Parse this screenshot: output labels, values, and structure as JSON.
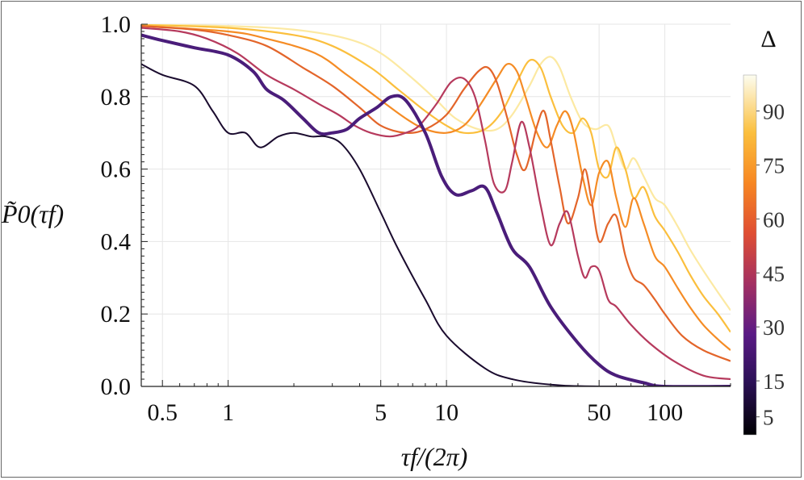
{
  "chart_data": {
    "type": "line",
    "xlabel": "τf/(2π)",
    "ylabel": "P̃0(τf)",
    "x_scale": "log",
    "xlim": [
      0.4,
      200
    ],
    "ylim": [
      0,
      1
    ],
    "x_ticks": [
      0.5,
      1,
      5,
      10,
      50,
      100
    ],
    "x_tick_labels": [
      "0.5",
      "1",
      "5",
      "10",
      "50",
      "100"
    ],
    "y_ticks": [
      0,
      0.2,
      0.4,
      0.6,
      0.8,
      1.0
    ],
    "y_tick_labels": [
      "0.0",
      "0.2",
      "0.4",
      "0.6",
      "0.8",
      "1.0"
    ],
    "grid": true,
    "colorbar": {
      "title": "Δ",
      "range": [
        0,
        100
      ],
      "tick_values": [
        5,
        15,
        30,
        45,
        60,
        75,
        90
      ],
      "tick_labels": [
        "5",
        "15",
        "30",
        "45",
        "60",
        "75",
        "90"
      ]
    },
    "series": [
      {
        "delta": 5,
        "color": "#1a0b2e",
        "width": 2.0,
        "points": [
          [
            0.4,
            0.89
          ],
          [
            0.5,
            0.86
          ],
          [
            0.7,
            0.83
          ],
          [
            0.85,
            0.76
          ],
          [
            1.0,
            0.7
          ],
          [
            1.2,
            0.7
          ],
          [
            1.4,
            0.66
          ],
          [
            1.7,
            0.69
          ],
          [
            2.0,
            0.7
          ],
          [
            2.4,
            0.69
          ],
          [
            2.8,
            0.69
          ],
          [
            3.3,
            0.67
          ],
          [
            4.0,
            0.6
          ],
          [
            5.0,
            0.48
          ],
          [
            6.0,
            0.38
          ],
          [
            8.0,
            0.24
          ],
          [
            10,
            0.14
          ],
          [
            15,
            0.05
          ],
          [
            20,
            0.02
          ],
          [
            30,
            0.005
          ],
          [
            50,
            0.0
          ],
          [
            200,
            0.0
          ]
        ]
      },
      {
        "delta": 15,
        "color": "#4a1d7a",
        "width": 4.0,
        "points": [
          [
            0.4,
            0.97
          ],
          [
            0.5,
            0.955
          ],
          [
            0.7,
            0.935
          ],
          [
            1.0,
            0.915
          ],
          [
            1.3,
            0.87
          ],
          [
            1.5,
            0.82
          ],
          [
            1.8,
            0.79
          ],
          [
            2.2,
            0.74
          ],
          [
            2.6,
            0.7
          ],
          [
            3.0,
            0.7
          ],
          [
            3.5,
            0.71
          ],
          [
            4.0,
            0.74
          ],
          [
            4.8,
            0.77
          ],
          [
            5.6,
            0.8
          ],
          [
            6.5,
            0.79
          ],
          [
            8.0,
            0.7
          ],
          [
            9.5,
            0.58
          ],
          [
            11,
            0.53
          ],
          [
            13,
            0.54
          ],
          [
            15,
            0.55
          ],
          [
            17,
            0.48
          ],
          [
            20,
            0.38
          ],
          [
            24,
            0.33
          ],
          [
            30,
            0.22
          ],
          [
            40,
            0.12
          ],
          [
            50,
            0.06
          ],
          [
            60,
            0.03
          ],
          [
            80,
            0.01
          ],
          [
            100,
            0.0
          ],
          [
            200,
            0.0
          ]
        ]
      },
      {
        "delta": 30,
        "color": "#b63a5d",
        "width": 2.2,
        "points": [
          [
            0.4,
            0.99
          ],
          [
            0.6,
            0.98
          ],
          [
            0.8,
            0.96
          ],
          [
            1.1,
            0.92
          ],
          [
            1.5,
            0.86
          ],
          [
            2.0,
            0.82
          ],
          [
            2.6,
            0.78
          ],
          [
            3.2,
            0.75
          ],
          [
            3.8,
            0.72
          ],
          [
            4.5,
            0.7
          ],
          [
            5.5,
            0.69
          ],
          [
            6.5,
            0.7
          ],
          [
            7.5,
            0.72
          ],
          [
            9.0,
            0.78
          ],
          [
            10.5,
            0.84
          ],
          [
            12,
            0.85
          ],
          [
            13.5,
            0.8
          ],
          [
            15,
            0.68
          ],
          [
            16.5,
            0.56
          ],
          [
            18.5,
            0.54
          ],
          [
            20,
            0.62
          ],
          [
            22,
            0.73
          ],
          [
            24,
            0.66
          ],
          [
            27,
            0.5
          ],
          [
            30,
            0.39
          ],
          [
            33,
            0.45
          ],
          [
            36,
            0.48
          ],
          [
            40,
            0.36
          ],
          [
            43,
            0.3
          ],
          [
            46,
            0.33
          ],
          [
            50,
            0.32
          ],
          [
            55,
            0.24
          ],
          [
            60,
            0.22
          ],
          [
            70,
            0.17
          ],
          [
            85,
            0.12
          ],
          [
            110,
            0.07
          ],
          [
            150,
            0.03
          ],
          [
            200,
            0.02
          ]
        ]
      },
      {
        "delta": 45,
        "color": "#e3652a",
        "width": 2.2,
        "points": [
          [
            0.4,
            0.995
          ],
          [
            0.7,
            0.985
          ],
          [
            1.0,
            0.97
          ],
          [
            1.5,
            0.94
          ],
          [
            2.2,
            0.88
          ],
          [
            3.0,
            0.83
          ],
          [
            4.0,
            0.77
          ],
          [
            5.0,
            0.72
          ],
          [
            6.5,
            0.7
          ],
          [
            8.0,
            0.71
          ],
          [
            10,
            0.75
          ],
          [
            12,
            0.82
          ],
          [
            14,
            0.87
          ],
          [
            15.5,
            0.88
          ],
          [
            17,
            0.84
          ],
          [
            19,
            0.74
          ],
          [
            21,
            0.64
          ],
          [
            23,
            0.6
          ],
          [
            26,
            0.72
          ],
          [
            28,
            0.76
          ],
          [
            30,
            0.68
          ],
          [
            33,
            0.55
          ],
          [
            36,
            0.45
          ],
          [
            40,
            0.52
          ],
          [
            43,
            0.6
          ],
          [
            46,
            0.52
          ],
          [
            50,
            0.4
          ],
          [
            55,
            0.45
          ],
          [
            60,
            0.47
          ],
          [
            66,
            0.36
          ],
          [
            72,
            0.3
          ],
          [
            80,
            0.28
          ],
          [
            90,
            0.24
          ],
          [
            100,
            0.2
          ],
          [
            120,
            0.14
          ],
          [
            150,
            0.1
          ],
          [
            200,
            0.07
          ]
        ]
      },
      {
        "delta": 60,
        "color": "#f58c25",
        "width": 2.2,
        "points": [
          [
            0.4,
            0.995
          ],
          [
            1.0,
            0.98
          ],
          [
            1.5,
            0.96
          ],
          [
            2.5,
            0.92
          ],
          [
            3.5,
            0.86
          ],
          [
            5.0,
            0.79
          ],
          [
            6.5,
            0.74
          ],
          [
            8.0,
            0.71
          ],
          [
            10,
            0.7
          ],
          [
            12,
            0.72
          ],
          [
            14,
            0.77
          ],
          [
            17,
            0.85
          ],
          [
            19,
            0.89
          ],
          [
            21,
            0.87
          ],
          [
            23,
            0.8
          ],
          [
            26,
            0.7
          ],
          [
            29,
            0.66
          ],
          [
            32,
            0.72
          ],
          [
            35,
            0.76
          ],
          [
            38,
            0.71
          ],
          [
            42,
            0.58
          ],
          [
            46,
            0.5
          ],
          [
            50,
            0.59
          ],
          [
            55,
            0.62
          ],
          [
            60,
            0.52
          ],
          [
            66,
            0.44
          ],
          [
            72,
            0.52
          ],
          [
            80,
            0.45
          ],
          [
            90,
            0.36
          ],
          [
            100,
            0.33
          ],
          [
            115,
            0.27
          ],
          [
            130,
            0.22
          ],
          [
            150,
            0.17
          ],
          [
            175,
            0.13
          ],
          [
            200,
            0.1
          ]
        ]
      },
      {
        "delta": 75,
        "color": "#fbbf3d",
        "width": 2.2,
        "points": [
          [
            0.4,
            0.998
          ],
          [
            1.0,
            0.99
          ],
          [
            2.0,
            0.97
          ],
          [
            3.0,
            0.94
          ],
          [
            4.5,
            0.88
          ],
          [
            6.0,
            0.82
          ],
          [
            8.0,
            0.76
          ],
          [
            10,
            0.72
          ],
          [
            12,
            0.7
          ],
          [
            15,
            0.71
          ],
          [
            18,
            0.76
          ],
          [
            21,
            0.84
          ],
          [
            24,
            0.9
          ],
          [
            27,
            0.88
          ],
          [
            30,
            0.8
          ],
          [
            34,
            0.72
          ],
          [
            38,
            0.7
          ],
          [
            42,
            0.74
          ],
          [
            46,
            0.7
          ],
          [
            50,
            0.6
          ],
          [
            55,
            0.58
          ],
          [
            60,
            0.66
          ],
          [
            66,
            0.6
          ],
          [
            72,
            0.52
          ],
          [
            80,
            0.55
          ],
          [
            90,
            0.47
          ],
          [
            100,
            0.43
          ],
          [
            115,
            0.37
          ],
          [
            130,
            0.31
          ],
          [
            150,
            0.25
          ],
          [
            175,
            0.2
          ],
          [
            200,
            0.15
          ]
        ]
      },
      {
        "delta": 90,
        "color": "#fce9a2",
        "width": 2.2,
        "points": [
          [
            0.4,
            0.999
          ],
          [
            1.0,
            0.995
          ],
          [
            2.0,
            0.985
          ],
          [
            3.5,
            0.96
          ],
          [
            5.0,
            0.92
          ],
          [
            7.0,
            0.85
          ],
          [
            9.0,
            0.79
          ],
          [
            11,
            0.74
          ],
          [
            14,
            0.71
          ],
          [
            17,
            0.71
          ],
          [
            20,
            0.75
          ],
          [
            24,
            0.83
          ],
          [
            27,
            0.89
          ],
          [
            30,
            0.91
          ],
          [
            33,
            0.88
          ],
          [
            37,
            0.8
          ],
          [
            42,
            0.73
          ],
          [
            48,
            0.71
          ],
          [
            55,
            0.72
          ],
          [
            60,
            0.66
          ],
          [
            66,
            0.6
          ],
          [
            72,
            0.63
          ],
          [
            80,
            0.58
          ],
          [
            90,
            0.52
          ],
          [
            100,
            0.5
          ],
          [
            115,
            0.44
          ],
          [
            130,
            0.38
          ],
          [
            150,
            0.32
          ],
          [
            175,
            0.26
          ],
          [
            200,
            0.21
          ]
        ]
      }
    ]
  }
}
